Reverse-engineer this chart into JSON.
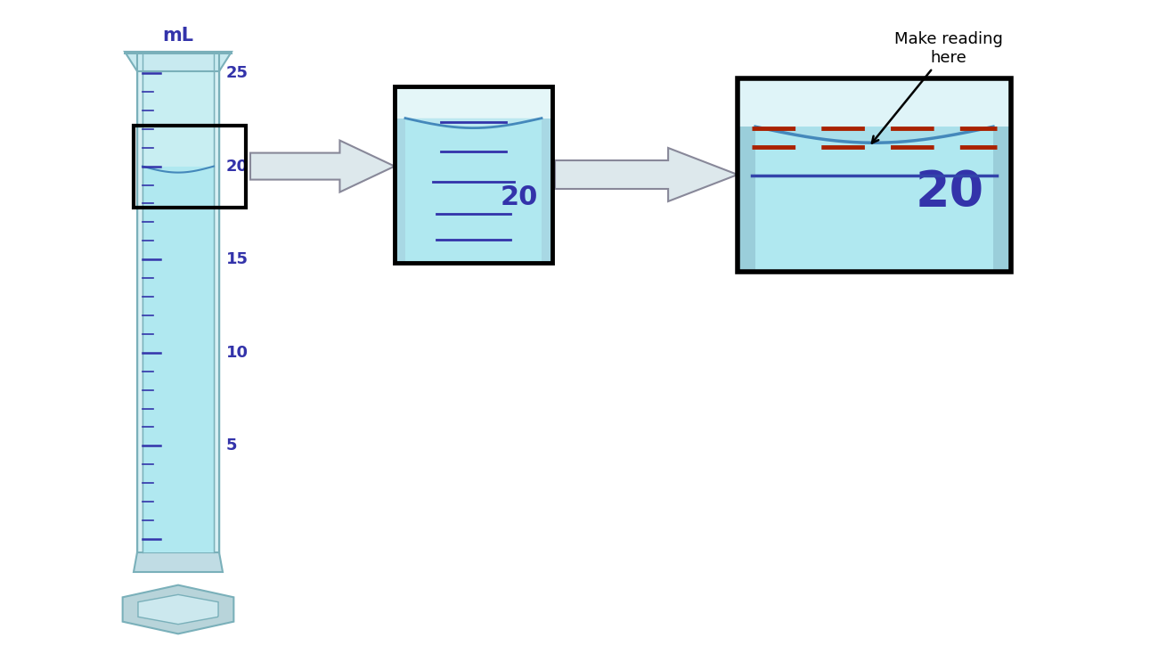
{
  "bg_color": "#ffffff",
  "cyl_fill": "#c8eef2",
  "cyl_border": "#7ab0ba",
  "water_color": "#b0e8f0",
  "water_color2": "#90d8e8",
  "tick_color": "#3333aa",
  "label_color": "#3333aa",
  "meniscus_color": "#4488bb",
  "arrow_fill": "#dde8ec",
  "arrow_border": "#888899",
  "dashed_color": "#aa2200",
  "solid_line_color": "#3344aa",
  "box_border": "#000000",
  "title": "mL",
  "reading": "20",
  "make_reading_text": "Make reading\nhere"
}
